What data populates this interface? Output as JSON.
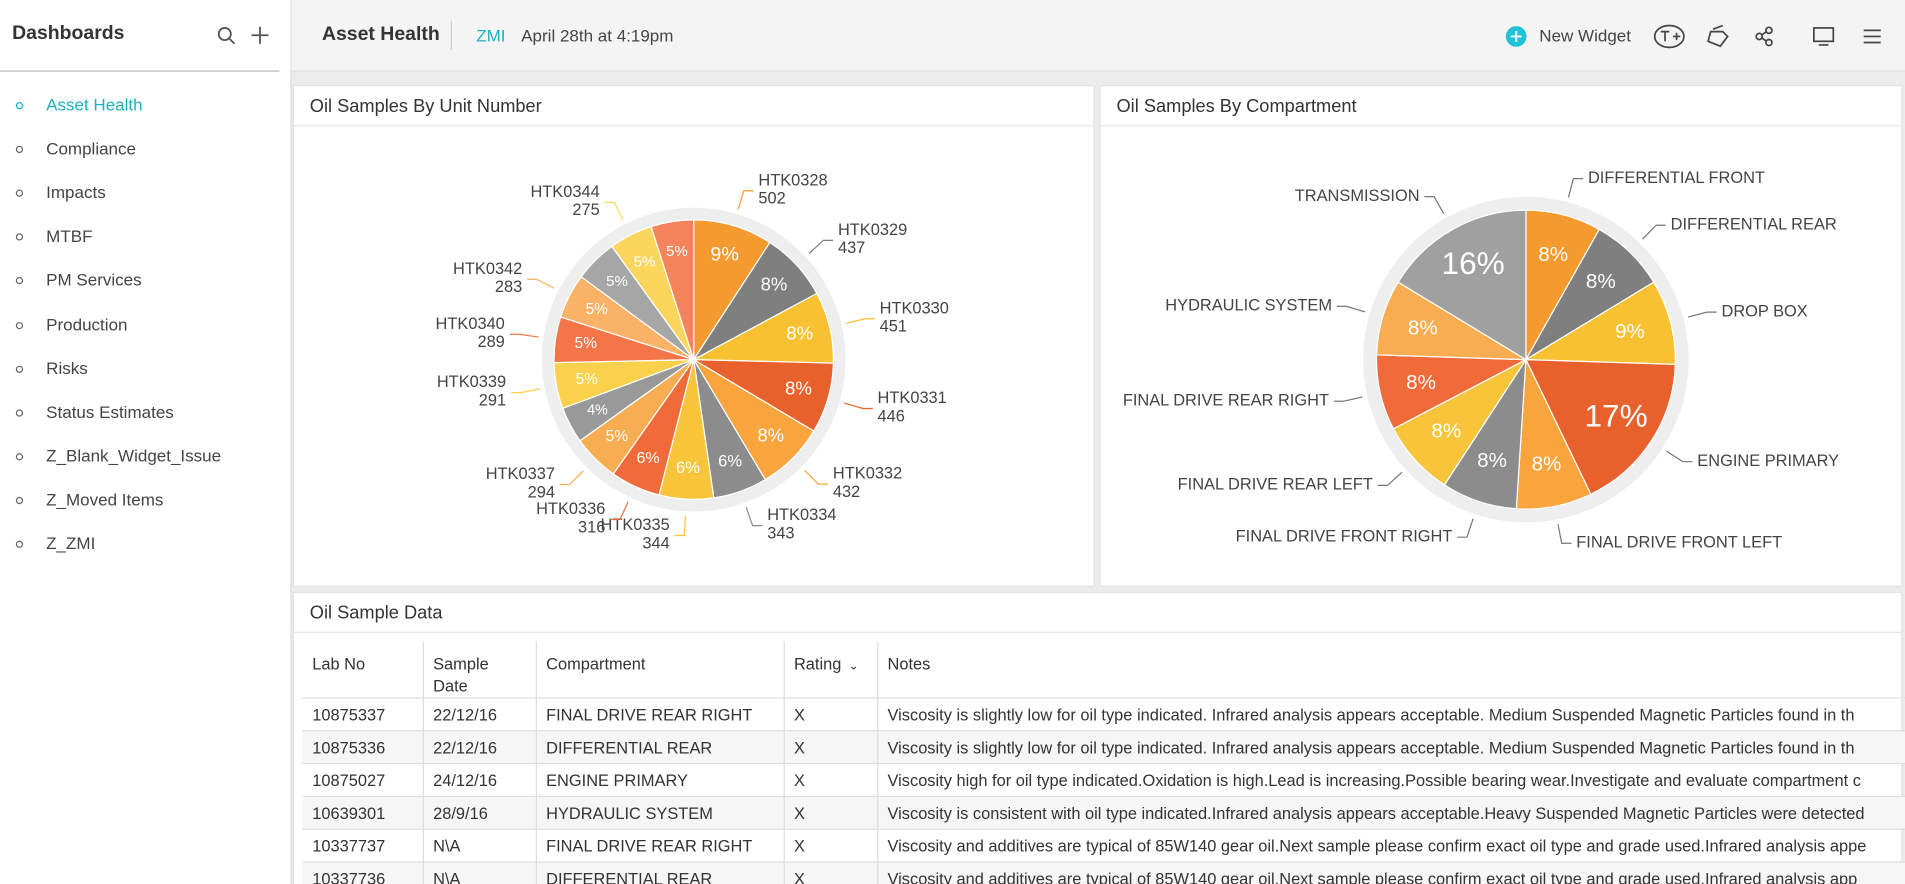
{
  "sidebar": {
    "title": "Dashboards",
    "items": [
      "Asset Health",
      "Compliance",
      "Impacts",
      "MTBF",
      "PM Services",
      "Production",
      "Risks",
      "Status Estimates",
      "Z_Blank_Widget_Issue",
      "Z_Moved Items",
      "Z_ZMI"
    ]
  },
  "header": {
    "title": "Asset Health",
    "tag": "ZMI",
    "timestamp": "April 28th at 4:19pm",
    "new_widget": "New Widget"
  },
  "chart_data": [
    {
      "type": "pie",
      "title": "Oil Samples By Unit Number",
      "categories": [
        "HTK0328",
        "HTK0329",
        "HTK0330",
        "HTK0331",
        "HTK0332",
        "HTK0334",
        "HTK0335",
        "HTK0336",
        "HTK0337",
        null,
        "HTK0339",
        "HTK0340",
        "HTK0342",
        null,
        "HTK0344",
        null
      ],
      "values": [
        502,
        437,
        451,
        446,
        432,
        343,
        344,
        316,
        294,
        230,
        291,
        289,
        283,
        270,
        275,
        270
      ],
      "value_labels": [
        "9%",
        "8%",
        "8%",
        "8%",
        "8%",
        "6%",
        "6%",
        "6%",
        "5%",
        "4%",
        "5%",
        "5%",
        "5%",
        "5%",
        "5%",
        "5%"
      ],
      "colors": [
        "#f59a2f",
        "#7f7f7f",
        "#f8c132",
        "#e8612c",
        "#f9a43c",
        "#8c8c8c",
        "#f8c43a",
        "#f06a3a",
        "#f9ad52",
        "#999999",
        "#fbd04a",
        "#f37548",
        "#fab266",
        "#a6a6a6",
        "#fcd65c",
        "#f5845c"
      ]
    },
    {
      "type": "pie",
      "title": "Oil Samples By Compartment",
      "categories": [
        "DIFFERENTIAL FRONT",
        "DIFFERENTIAL REAR",
        "DROP BOX",
        "ENGINE PRIMARY",
        "FINAL DRIVE FRONT LEFT",
        "FINAL DRIVE FRONT RIGHT",
        "FINAL DRIVE REAR LEFT",
        "FINAL DRIVE REAR RIGHT",
        "HYDRAULIC SYSTEM",
        "TRANSMISSION"
      ],
      "values": [
        8,
        8,
        9,
        17,
        8,
        8,
        8,
        8,
        8,
        16
      ],
      "value_labels": [
        "8%",
        "8%",
        "9%",
        "17%",
        "8%",
        "8%",
        "8%",
        "8%",
        "8%",
        "16%"
      ],
      "colors": [
        "#f59a2f",
        "#7f7f7f",
        "#f8c132",
        "#e8612c",
        "#f9a43c",
        "#8c8c8c",
        "#f8c43a",
        "#f06a3a",
        "#f9ad52",
        "#a0a0a0"
      ]
    }
  ],
  "table": {
    "title": "Oil Sample Data",
    "columns": [
      "Lab No",
      "Sample Date",
      "Compartment",
      "Rating",
      "Notes"
    ],
    "rows": [
      [
        "10875337",
        "22/12/16",
        "FINAL DRIVE REAR RIGHT",
        "X",
        "Viscosity is slightly low for oil type indicated. Infrared analysis appears acceptable. Medium Suspended Magnetic Particles found in th"
      ],
      [
        "10875336",
        "22/12/16",
        "DIFFERENTIAL REAR",
        "X",
        "Viscosity is slightly low for oil type indicated. Infrared analysis appears acceptable. Medium Suspended Magnetic Particles found in th"
      ],
      [
        "10875027",
        "24/12/16",
        "ENGINE PRIMARY",
        "X",
        "Viscosity high for oil type indicated.Oxidation is high.Lead is increasing.Possible bearing wear.Investigate and evaluate compartment c"
      ],
      [
        "10639301",
        "28/9/16",
        "HYDRAULIC SYSTEM",
        "X",
        "Viscosity is consistent with oil type indicated.Infrared analysis appears acceptable.Heavy Suspended Magnetic Particles were detected"
      ],
      [
        "10337737",
        "N\\A",
        "FINAL DRIVE REAR RIGHT",
        "X",
        "Viscosity and additives are typical of 85W140 gear oil.Next sample please confirm exact oil type and grade used.Infrared analysis appe"
      ],
      [
        "10337736",
        "N\\A",
        "DIFFERENTIAL REAR",
        "X",
        "Viscosity and additives are typical of 85W140 gear oil.Next sample please confirm exact oil type and grade used.Infrared analysis app"
      ]
    ]
  }
}
